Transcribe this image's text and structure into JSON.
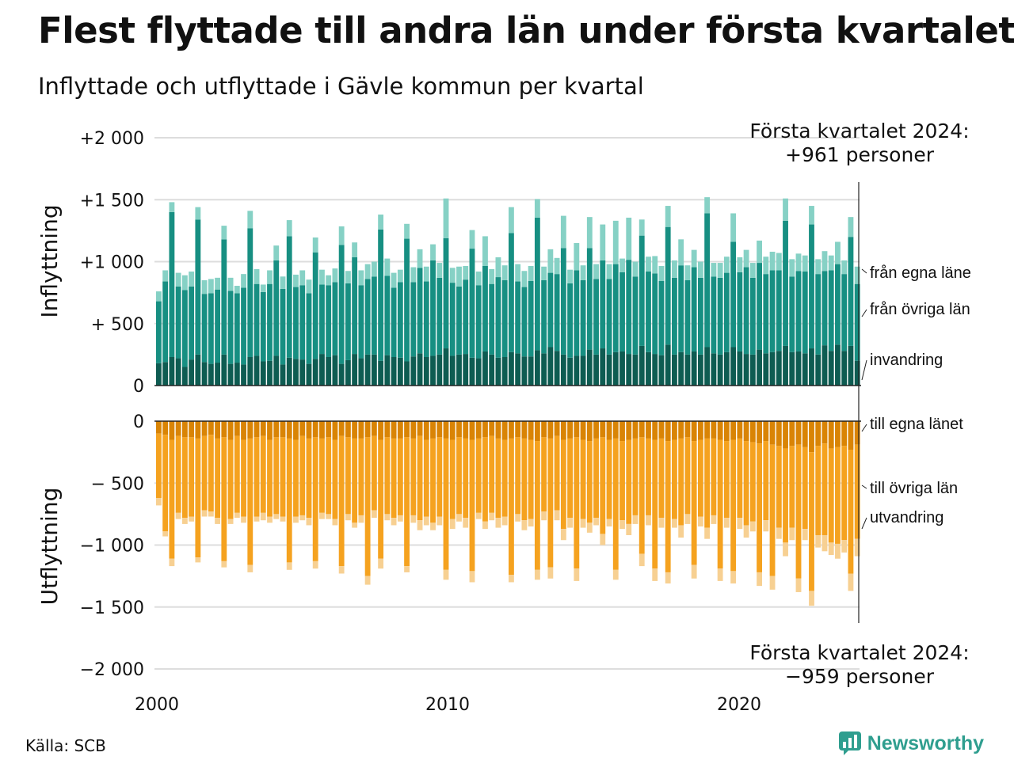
{
  "title": "Flest flyttade till andra län under första kvartalet",
  "subtitle": "Inflyttade och utflyttade i Gävle kommun per kvartal",
  "source": "Källa: SCB",
  "brand": {
    "name": "Newsworthy",
    "icon": "newsworthy-logo-icon",
    "color": "#2f9e8f"
  },
  "chart_data": {
    "type": "bar",
    "stacked": true,
    "x_start": "2000 Q1",
    "x_end": "2024 Q1",
    "x_ticks": [
      "2000",
      "2010",
      "2020"
    ],
    "y_ticks": {
      "top": [
        {
          "value": 0,
          "label": "0"
        },
        {
          "value": 500,
          "label": "+  500"
        },
        {
          "value": 1000,
          "label": "+1 000"
        },
        {
          "value": 1500,
          "label": "+1 500"
        },
        {
          "value": 2000,
          "label": "+2 000"
        }
      ],
      "bottom": [
        {
          "value": 0,
          "label": "0"
        },
        {
          "value": -500,
          "label": "−  500"
        },
        {
          "value": -1000,
          "label": "−1 000"
        },
        {
          "value": -1500,
          "label": "−1 500"
        },
        {
          "value": -2000,
          "label": "−2 000"
        }
      ]
    },
    "panels": [
      {
        "id": "inflyttning",
        "ylabel": "Inflyttning",
        "ylim": [
          0,
          2000
        ],
        "annotation": [
          "Första kvartalet 2024:",
          "+961 personer"
        ],
        "series": [
          {
            "name": "från egna läne",
            "color": "#0e5c52",
            "values": [
              180,
              190,
              230,
              220,
              150,
              210,
              250,
              190,
              175,
              185,
              250,
              175,
              185,
              170,
              230,
              240,
              195,
              200,
              240,
              170,
              225,
              215,
              210,
              175,
              215,
              255,
              230,
              245,
              175,
              205,
              255,
              220,
              250,
              250,
              200,
              245,
              230,
              225,
              195,
              235,
              260,
              230,
              240,
              250,
              300,
              240,
              250,
              255,
              225,
              220,
              275,
              250,
              225,
              230,
              270,
              260,
              235,
              235,
              285,
              260,
              310,
              280,
              250,
              225,
              240,
              240,
              290,
              250,
              300,
              250,
              270,
              275,
              255,
              250,
              320,
              270,
              255,
              245,
              330,
              250,
              270,
              250,
              275,
              250,
              310,
              260,
              250,
              270,
              310,
              275,
              255,
              250,
              290,
              260,
              270,
              280,
              320,
              270,
              275,
              260,
              300,
              250,
              325,
              280,
              330,
              280,
              320,
              200
            ]
          },
          {
            "name": "från övriga län",
            "color": "#178f82",
            "values": [
              500,
              650,
              1170,
              580,
              620,
              590,
              1090,
              550,
              570,
              590,
              930,
              590,
              560,
              620,
              1040,
              580,
              560,
              620,
              770,
              610,
              980,
              580,
              600,
              570,
              860,
              560,
              580,
              590,
              960,
              620,
              780,
              590,
              610,
              630,
              1060,
              640,
              560,
              610,
              990,
              600,
              690,
              610,
              770,
              620,
              890,
              590,
              550,
              600,
              880,
              590,
              690,
              570,
              650,
              620,
              960,
              580,
              560,
              610,
              1070,
              590,
              600,
              620,
              860,
              600,
              690,
              610,
              820,
              610,
              710,
              610,
              710,
              640,
              760,
              630,
              890,
              650,
              650,
              600,
              950,
              620,
              700,
              600,
              680,
              620,
              1080,
              620,
              620,
              640,
              850,
              640,
              700,
              620,
              700,
              640,
              660,
              650,
              1010,
              610,
              650,
              660,
              1000,
              650,
              600,
              650,
              650,
              620,
              880,
              620
            ]
          },
          {
            "name": "invandring",
            "color": "#86d1c5",
            "values": [
              80,
              90,
              80,
              110,
              120,
              120,
              100,
              110,
              115,
              95,
              110,
              105,
              60,
              110,
              140,
              120,
              60,
              110,
              120,
              100,
              130,
              100,
              120,
              110,
              120,
              120,
              80,
              110,
              150,
              100,
              120,
              120,
              120,
              120,
              120,
              140,
              120,
              100,
              120,
              120,
              150,
              120,
              130,
              120,
              320,
              120,
              160,
              110,
              150,
              110,
              240,
              120,
              160,
              120,
              210,
              140,
              130,
              120,
              150,
              110,
              190,
              130,
              260,
              110,
              220,
              120,
              250,
              120,
              290,
              120,
              350,
              110,
              340,
              120,
              130,
              120,
              140,
              120,
              170,
              140,
              210,
              120,
              140,
              130,
              130,
              110,
              120,
              130,
              230,
              120,
              140,
              120,
              180,
              140,
              150,
              140,
              180,
              140,
              140,
              130,
              150,
              120,
              160,
              120,
              180,
              110,
              160,
              140
            ]
          }
        ]
      },
      {
        "id": "utflyttning",
        "ylabel": "Utflyttning",
        "ylim": [
          -2000,
          0
        ],
        "annotation": [
          "Första kvartalet 2024:",
          "−959 personer"
        ],
        "series": [
          {
            "name": "till egna länet",
            "color": "#d98405",
            "values": [
              -100,
              -110,
              -150,
              -120,
              -130,
              -130,
              -140,
              -120,
              -110,
              -140,
              -130,
              -150,
              -120,
              -150,
              -140,
              -130,
              -120,
              -150,
              -130,
              -130,
              -140,
              -150,
              -120,
              -140,
              -130,
              -140,
              -130,
              -150,
              -120,
              -130,
              -140,
              -140,
              -130,
              -120,
              -150,
              -130,
              -140,
              -140,
              -130,
              -140,
              -120,
              -150,
              -140,
              -130,
              -140,
              -150,
              -130,
              -140,
              -150,
              -140,
              -130,
              -120,
              -140,
              -150,
              -140,
              -130,
              -140,
              -150,
              -160,
              -130,
              -140,
              -120,
              -150,
              -140,
              -130,
              -150,
              -160,
              -140,
              -130,
              -150,
              -140,
              -160,
              -150,
              -140,
              -130,
              -140,
              -150,
              -140,
              -160,
              -150,
              -140,
              -130,
              -160,
              -150,
              -140,
              -140,
              -150,
              -160,
              -150,
              -140,
              -160,
              -170,
              -180,
              -160,
              -190,
              -200,
              -220,
              -200,
              -190,
              -210,
              -250,
              -200,
              -180,
              -220,
              -210,
              -200,
              -230,
              -190
            ]
          },
          {
            "name": "till övriga län",
            "color": "#f5a21f",
            "values": [
              -520,
              -780,
              -960,
              -620,
              -650,
              -640,
              -960,
              -600,
              -620,
              -640,
              -1000,
              -640,
              -620,
              -620,
              -1020,
              -640,
              -620,
              -620,
              -620,
              -640,
              -1000,
              -620,
              -640,
              -640,
              -1000,
              -600,
              -620,
              -640,
              -1050,
              -620,
              -680,
              -620,
              -1120,
              -600,
              -960,
              -620,
              -640,
              -620,
              -1040,
              -620,
              -680,
              -620,
              -680,
              -640,
              -1060,
              -640,
              -620,
              -640,
              -1060,
              -600,
              -680,
              -620,
              -640,
              -620,
              -1100,
              -620,
              -660,
              -640,
              -1040,
              -600,
              -1040,
              -600,
              -720,
              -640,
              -1060,
              -640,
              -660,
              -640,
              -780,
              -640,
              -1060,
              -640,
              -680,
              -620,
              -940,
              -620,
              -1040,
              -640,
              -1060,
              -640,
              -700,
              -620,
              -1000,
              -620,
              -720,
              -620,
              -1040,
              -620,
              -1060,
              -640,
              -680,
              -640,
              -1040,
              -640,
              -1060,
              -660,
              -760,
              -660,
              -1080,
              -660,
              -1120,
              -720,
              -740,
              -760,
              -780,
              -760,
              -1000,
              -760
            ]
          },
          {
            "name": "utvandring",
            "color": "#f7d092",
            "values": [
              -60,
              -40,
              -60,
              -50,
              -50,
              -40,
              -40,
              -50,
              -40,
              -50,
              -50,
              -40,
              -40,
              -50,
              -60,
              -40,
              -60,
              -50,
              -40,
              -40,
              -60,
              -50,
              -40,
              -60,
              -60,
              -50,
              -40,
              -50,
              -60,
              -50,
              -40,
              -60,
              -70,
              -60,
              -80,
              -50,
              -60,
              -50,
              -50,
              -60,
              -80,
              -70,
              -60,
              -70,
              -80,
              -80,
              -60,
              -80,
              -90,
              -50,
              -60,
              -60,
              -80,
              -70,
              -60,
              -60,
              -80,
              -60,
              -80,
              -70,
              -90,
              -80,
              -90,
              -80,
              -100,
              -70,
              -80,
              -60,
              -90,
              -60,
              -80,
              -70,
              -90,
              -70,
              -100,
              -80,
              -100,
              -80,
              -90,
              -70,
              -100,
              -80,
              -110,
              -80,
              -90,
              -70,
              -100,
              -80,
              -100,
              -90,
              -100,
              -80,
              -110,
              -90,
              -110,
              -90,
              -110,
              -100,
              -110,
              -90,
              -120,
              -100,
              -130,
              -100,
              -120,
              -100,
              -140,
              -140
            ]
          }
        ]
      }
    ]
  }
}
